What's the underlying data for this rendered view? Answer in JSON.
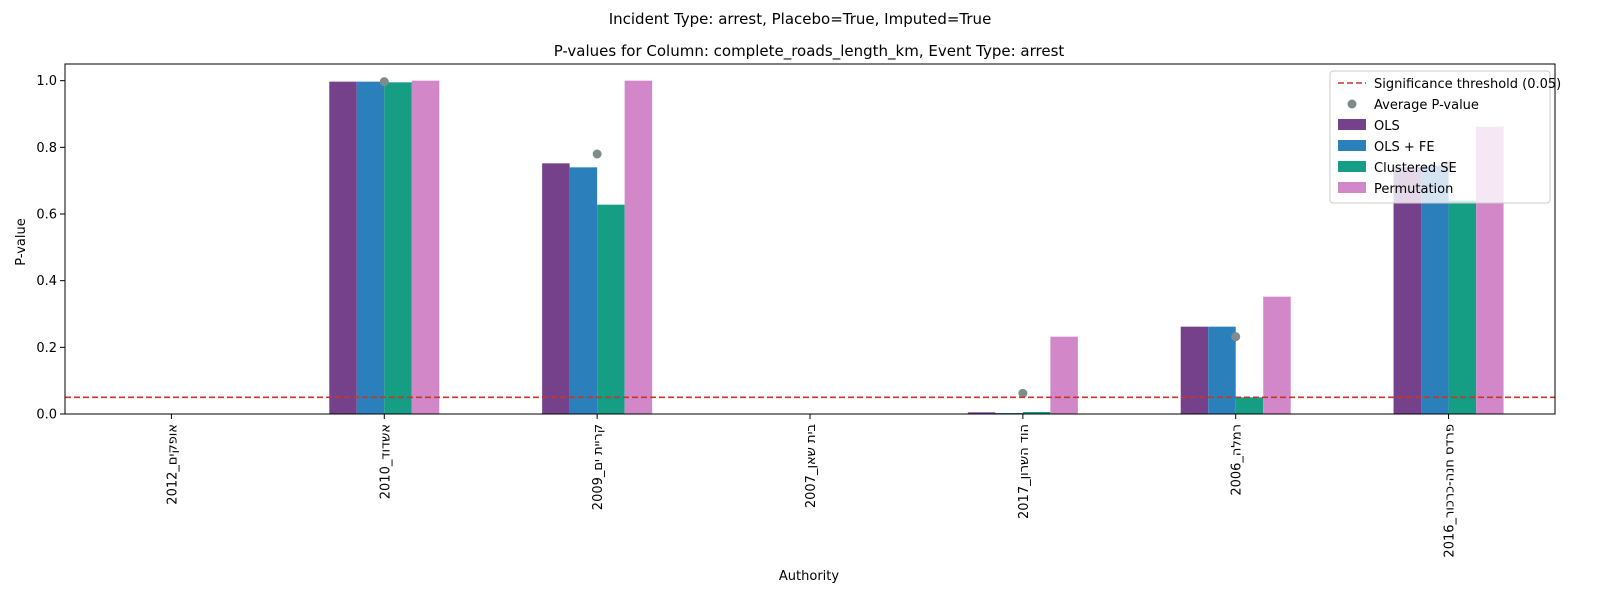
{
  "chart_data": {
    "type": "bar",
    "suptitle": "Incident Type: arrest, Placebo=True, Imputed=True",
    "title": "P-values for Column: complete_roads_length_km, Event Type: arrest",
    "xlabel": "Authority",
    "ylabel": "P-value",
    "ylim": [
      0,
      1.05
    ],
    "yticks": [
      "0.0",
      "0.2",
      "0.4",
      "0.6",
      "0.8",
      "1.0"
    ],
    "grid": false,
    "legend_position": "top-right",
    "categories": [
      "אופקים_2012",
      "אשדוד_2010",
      "קריית ים_2009",
      "בית שאן_2007",
      "הוד השרון_2017",
      "רמלה_2006",
      "פרדס חנה-כרכור_2016"
    ],
    "series": [
      {
        "name": "OLS",
        "color": "#74418a",
        "values": [
          0,
          0.997,
          0.752,
          0,
          0.005,
          0.262,
          0.74
        ]
      },
      {
        "name": "OLS + FE",
        "color": "#2b7fbb",
        "values": [
          0,
          0.997,
          0.74,
          0,
          0.003,
          0.262,
          0.745
        ]
      },
      {
        "name": "Clustered SE",
        "color": "#159e83",
        "values": [
          0,
          0.995,
          0.628,
          0,
          0.006,
          0.05,
          0.64
        ]
      },
      {
        "name": "Permutation",
        "color": "#d288c8",
        "values": [
          0,
          1.0,
          1.0,
          0,
          0.232,
          0.352,
          0.862
        ]
      }
    ],
    "average": {
      "name": "Average P-value",
      "color": "#7f8c8d",
      "values": [
        null,
        0.997,
        0.78,
        null,
        0.062,
        0.232,
        0.747
      ]
    },
    "threshold": {
      "name": "Significance threshold (0.05)",
      "value": 0.05,
      "color": "#c0392b"
    }
  }
}
